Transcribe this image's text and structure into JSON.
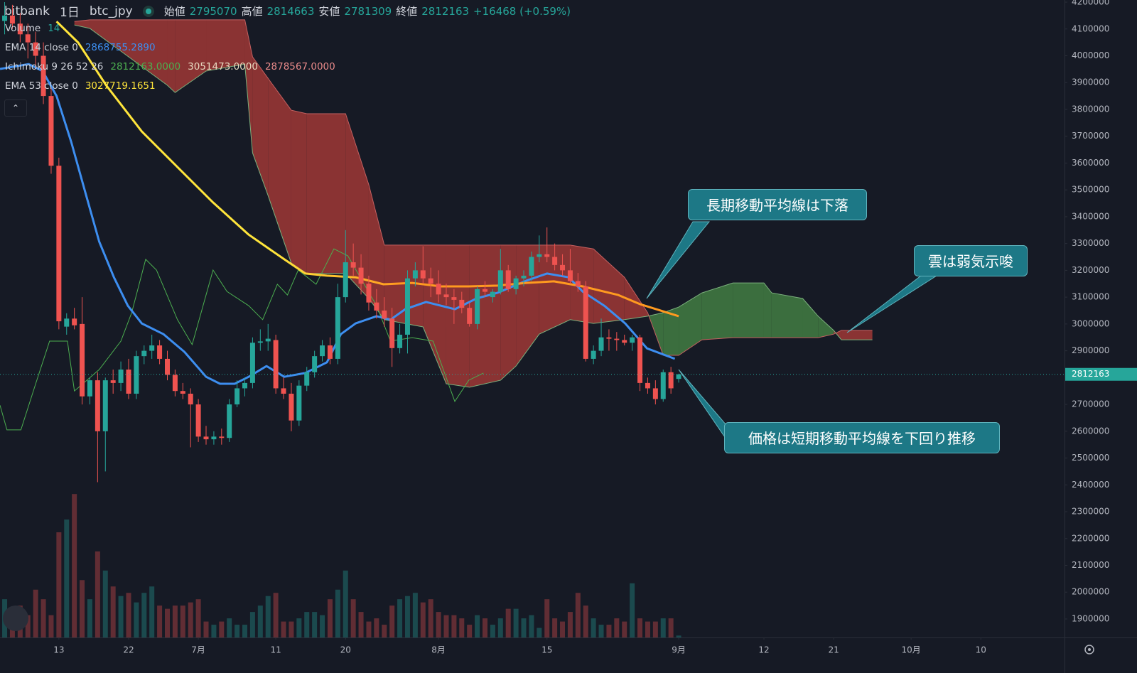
{
  "toolbar": {
    "exchange": "bitbank",
    "interval": "1日",
    "symbol": "btc_jpy",
    "open_label": "始値",
    "high_label": "高値",
    "low_label": "安値",
    "close_label": "終値",
    "change": "+16468 (+0.59%)"
  },
  "chart_data": {
    "type": "candlestick",
    "up_color": "#26a69a",
    "down_color": "#ef5350",
    "grid": false,
    "xlim": [
      -7.6,
      129.8
    ],
    "ylim": [
      1831000,
      4208000
    ],
    "y2lim": [
      0,
      1000
    ],
    "xticks": [
      {
        "value": 0,
        "label": "13"
      },
      {
        "value": 9,
        "label": "22"
      },
      {
        "value": 18,
        "label": "7月"
      },
      {
        "value": 28,
        "label": "11"
      },
      {
        "value": 37,
        "label": "20"
      },
      {
        "value": 49,
        "label": "8月"
      },
      {
        "value": 63,
        "label": "15"
      },
      {
        "value": 80,
        "label": "9月"
      },
      {
        "value": 91,
        "label": "12"
      },
      {
        "value": 100,
        "label": "21"
      },
      {
        "value": 110,
        "label": "10月"
      },
      {
        "value": 119,
        "label": "10"
      }
    ],
    "yticks": [
      1900000,
      2000000,
      2100000,
      2200000,
      2300000,
      2400000,
      2500000,
      2600000,
      2700000,
      2800000,
      2900000,
      3000000,
      3100000,
      3200000,
      3300000,
      3400000,
      3500000,
      3600000,
      3700000,
      3800000,
      3900000,
      4000000,
      4100000,
      4200000
    ],
    "x": [
      -7,
      -6,
      -5,
      -4,
      -3,
      -2,
      -1,
      0,
      1,
      2,
      3,
      4,
      5,
      6,
      7,
      8,
      9,
      10,
      11,
      12,
      13,
      14,
      15,
      16,
      17,
      18,
      19,
      20,
      21,
      22,
      23,
      24,
      25,
      26,
      27,
      28,
      29,
      30,
      31,
      32,
      33,
      34,
      35,
      36,
      37,
      38,
      39,
      40,
      41,
      42,
      43,
      44,
      45,
      46,
      47,
      48,
      49,
      50,
      51,
      52,
      53,
      54,
      55,
      56,
      57,
      58,
      59,
      60,
      61,
      62,
      63,
      64,
      65,
      66,
      67,
      68,
      69,
      70,
      71,
      72,
      73,
      74,
      75,
      76,
      77,
      78,
      79,
      80
    ],
    "open": [
      4130000,
      4150000,
      4120000,
      4080000,
      4050000,
      4000000,
      3850000,
      3590000,
      2990000,
      3020000,
      3000000,
      2730000,
      2790000,
      2600000,
      2790000,
      2780000,
      2830000,
      2740000,
      2880000,
      2900000,
      2920000,
      2870000,
      2810000,
      2750000,
      2740000,
      2700000,
      2580000,
      2570000,
      2580000,
      2575000,
      2700000,
      2760000,
      2780000,
      2930000,
      2935000,
      2940000,
      2760000,
      2740000,
      2640000,
      2770000,
      2820000,
      2880000,
      2920000,
      2870000,
      3100000,
      3230000,
      3210000,
      3150000,
      3080000,
      3050000,
      3020000,
      2910000,
      2960000,
      3170000,
      3200000,
      3170000,
      3150000,
      3110000,
      3100000,
      3090000,
      3060000,
      3000000,
      3130000,
      3100000,
      3120000,
      3200000,
      3130000,
      3170000,
      3180000,
      3250000,
      3260000,
      3250000,
      3220000,
      3200000,
      3160000,
      3140000,
      2870000,
      2900000,
      2950000,
      2945000,
      2940000,
      2930000,
      2950000,
      2780000,
      2760000,
      2720000,
      2820000,
      2795070
    ],
    "high": [
      4200000,
      4190000,
      4160000,
      4120000,
      4090000,
      4050000,
      3880000,
      3620000,
      3040000,
      3060000,
      3100000,
      2800000,
      2820000,
      2800000,
      2830000,
      2860000,
      2870000,
      2900000,
      2920000,
      2960000,
      2940000,
      2900000,
      2830000,
      2780000,
      2760000,
      2720000,
      2620000,
      2600000,
      2610000,
      2720000,
      2790000,
      2800000,
      2950000,
      2980000,
      3000000,
      2960000,
      2800000,
      2780000,
      2790000,
      2840000,
      2900000,
      2940000,
      2950000,
      3150000,
      3350000,
      3300000,
      3260000,
      3180000,
      3130000,
      3100000,
      3060000,
      3000000,
      3200000,
      3230000,
      3290000,
      3210000,
      3200000,
      3150000,
      3130000,
      3120000,
      3080000,
      3140000,
      3160000,
      3130000,
      3280000,
      3220000,
      3180000,
      3200000,
      3270000,
      3330000,
      3360000,
      3300000,
      3260000,
      3280000,
      3190000,
      3160000,
      2920000,
      3020000,
      2980000,
      2970000,
      2960000,
      2960000,
      2960000,
      2800000,
      2790000,
      2830000,
      2840000,
      2814663
    ],
    "low": [
      4080000,
      4100000,
      4050000,
      3990000,
      3950000,
      3820000,
      3560000,
      2980000,
      2960000,
      2980000,
      2700000,
      2700000,
      2410000,
      2450000,
      2740000,
      2750000,
      2720000,
      2720000,
      2850000,
      2870000,
      2850000,
      2790000,
      2730000,
      2720000,
      2540000,
      2560000,
      2550000,
      2550000,
      2550000,
      2560000,
      2690000,
      2730000,
      2760000,
      2900000,
      2900000,
      2740000,
      2720000,
      2600000,
      2620000,
      2750000,
      2800000,
      2860000,
      2850000,
      2850000,
      3080000,
      3180000,
      3110000,
      3050000,
      3020000,
      2990000,
      2840000,
      2890000,
      2890000,
      3140000,
      3150000,
      3100000,
      3080000,
      3070000,
      3000000,
      3040000,
      2990000,
      2980000,
      3100000,
      3080000,
      3110000,
      3120000,
      3110000,
      3140000,
      3160000,
      3230000,
      3230000,
      3200000,
      3180000,
      3150000,
      3120000,
      2860000,
      2850000,
      2880000,
      2900000,
      2900000,
      2920000,
      2900000,
      2750000,
      2740000,
      2700000,
      2710000,
      2740000,
      2781309
    ],
    "close": [
      4150000,
      4120000,
      4080000,
      4050000,
      4000000,
      3850000,
      3590000,
      3010000,
      3020000,
      2995000,
      2730000,
      2790000,
      2600000,
      2790000,
      2780000,
      2830000,
      2740000,
      2880000,
      2900000,
      2920000,
      2870000,
      2810000,
      2750000,
      2740000,
      2700000,
      2580000,
      2570000,
      2580000,
      2575000,
      2700000,
      2760000,
      2780000,
      2930000,
      2935000,
      2945000,
      2760000,
      2740000,
      2640000,
      2770000,
      2820000,
      2880000,
      2920000,
      2870000,
      3100000,
      3230000,
      3210000,
      3150000,
      3080000,
      3050000,
      3020000,
      2910000,
      2960000,
      3170000,
      3200000,
      3170000,
      3150000,
      3110000,
      3100000,
      3090000,
      3060000,
      3000000,
      3130000,
      3120000,
      3120000,
      3200000,
      3130000,
      3170000,
      3180000,
      3250000,
      3260000,
      3250000,
      3220000,
      3200000,
      3160000,
      3140000,
      2870000,
      2900000,
      2950000,
      2945000,
      2940000,
      2930000,
      2950000,
      2780000,
      2760000,
      2720000,
      2820000,
      2760000,
      2812163
    ],
    "volume": {
      "name": "Volume",
      "label": "14",
      "axis": "y2",
      "opacity": 0.35,
      "values": [
        60,
        30,
        50,
        35,
        75,
        60,
        35,
        165,
        185,
        225,
        90,
        60,
        135,
        105,
        80,
        65,
        70,
        55,
        70,
        80,
        50,
        45,
        50,
        50,
        55,
        60,
        25,
        20,
        25,
        30,
        20,
        20,
        40,
        50,
        65,
        70,
        25,
        25,
        30,
        40,
        40,
        35,
        60,
        75,
        105,
        60,
        40,
        25,
        30,
        20,
        50,
        60,
        65,
        70,
        55,
        60,
        40,
        35,
        35,
        30,
        20,
        35,
        30,
        20,
        30,
        45,
        45,
        30,
        35,
        15,
        60,
        30,
        25,
        40,
        70,
        50,
        30,
        20,
        20,
        30,
        25,
        85,
        30,
        25,
        25,
        30,
        30,
        3
      ]
    },
    "series": [
      {
        "name": "EMA 14 close 0",
        "value_label": "2868755.2890",
        "color": "#3d8ef0",
        "x": [
          -7.6,
          -3.9,
          -2.1,
          -0.3,
          1.6,
          3.4,
          5.2,
          7.1,
          8.9,
          10.7,
          13.5,
          16.2,
          19.0,
          20.8,
          22.7,
          24.5,
          26.8,
          29.1,
          31.8,
          34.6,
          36.4,
          38.3,
          41.0,
          42.8,
          44.7,
          47.4,
          51.1,
          53.9,
          56.6,
          60.3,
          63.0,
          65.8,
          67.6,
          70.4,
          73.1,
          75.9,
          79.5
        ],
        "values": [
          3951000,
          3969000,
          3943000,
          3850000,
          3678000,
          3492000,
          3307000,
          3174000,
          3068000,
          3002000,
          2962000,
          2896000,
          2803000,
          2777000,
          2777000,
          2803000,
          2843000,
          2803000,
          2817000,
          2857000,
          2962000,
          3002000,
          3029000,
          3016000,
          3055000,
          3082000,
          3055000,
          3095000,
          3116000,
          3161000,
          3188000,
          3174000,
          3121000,
          3068000,
          3002000,
          2909000,
          2870000
        ]
      },
      {
        "name": "EMA 53 close 0",
        "value_label": "3027719.1651",
        "color": "#ffe53b",
        "color_end": "#ff9a1f",
        "x": [
          -0.3,
          2.5,
          6.1,
          10.7,
          15.3,
          19.9,
          24.5,
          29.1,
          31.8,
          34.6,
          38.3,
          41.9,
          45.6,
          49.3,
          52.9,
          56.6,
          60.3,
          63.9,
          67.6,
          72.2,
          75.0,
          80.0
        ],
        "values": [
          4128000,
          4049000,
          3890000,
          3718000,
          3585000,
          3453000,
          3333000,
          3241000,
          3188000,
          3180000,
          3174000,
          3148000,
          3153000,
          3140000,
          3140000,
          3143000,
          3153000,
          3159000,
          3140000,
          3108000,
          3074000,
          3029000
        ]
      }
    ],
    "ichimoku": {
      "name": "Ichimoku 9 26 52 26",
      "value_labels": [
        "2812163.0000",
        "3051473.0000",
        "2878567.0000"
      ],
      "bull_fill": "#3b6e3e",
      "bear_fill": "#8a3333",
      "lagging": {
        "color": "#4caf50",
        "x": [
          -7.6,
          -6.7,
          -4.9,
          -3.0,
          -1.2,
          1.1,
          2.0,
          5.2,
          8.0,
          9.4,
          11.2,
          12.6,
          15.3,
          17.2,
          19.9,
          21.7,
          24.5,
          26.3,
          28.2,
          29.5,
          30.9,
          33.2,
          35.5,
          37.3,
          41.0,
          42.8,
          45.6,
          48.3,
          51.1,
          52.9,
          54.8
        ],
        "values": [
          2697000,
          2605000,
          2605000,
          2777000,
          2936000,
          2936000,
          2750000,
          2830000,
          2936000,
          3042000,
          3241000,
          3201000,
          3016000,
          2923000,
          3201000,
          3121000,
          3068000,
          3016000,
          3148000,
          3108000,
          3201000,
          3148000,
          3280000,
          3254000,
          3068000,
          2936000,
          2949000,
          2936000,
          2711000,
          2790000,
          2817000
        ]
      },
      "x": [
        2,
        4,
        14,
        15,
        19,
        24,
        25,
        27,
        30,
        32,
        37,
        40,
        42,
        47,
        50,
        53,
        57,
        59,
        62,
        66,
        69,
        73,
        76,
        78,
        80,
        83,
        87,
        91,
        92,
        96,
        98,
        100,
        101,
        105
      ],
      "span_a": {
        "color": "#7bb07d",
        "values": [
          4115000,
          4102000,
          3890000,
          3863000,
          3943000,
          3969000,
          3638000,
          3479000,
          3227000,
          3188000,
          3188000,
          3095000,
          3016000,
          2989000,
          2777000,
          2764000,
          2790000,
          2843000,
          2962000,
          3016000,
          3002000,
          3016000,
          3029000,
          3042000,
          3063000,
          3116000,
          3153000,
          3153000,
          3116000,
          3095000,
          3029000,
          2976000,
          2941000,
          2941000
        ]
      },
      "span_b": {
        "color": "#c46060",
        "values": [
          4128000,
          4134000,
          4134000,
          4134000,
          4134000,
          4134000,
          3996000,
          3916000,
          3797000,
          3784000,
          3784000,
          3519000,
          3294000,
          3294000,
          3294000,
          3294000,
          3294000,
          3294000,
          3294000,
          3294000,
          3280000,
          3174000,
          3042000,
          2883000,
          2883000,
          2941000,
          2949000,
          2949000,
          2949000,
          2949000,
          2949000,
          2962000,
          2976000,
          2976000
        ]
      }
    },
    "annotations": [
      {
        "text": "長期移動平均線は下落"
      },
      {
        "text": "雲は弱気示唆"
      },
      {
        "text": "価格は短期移動平均線を下回り推移"
      }
    ]
  }
}
